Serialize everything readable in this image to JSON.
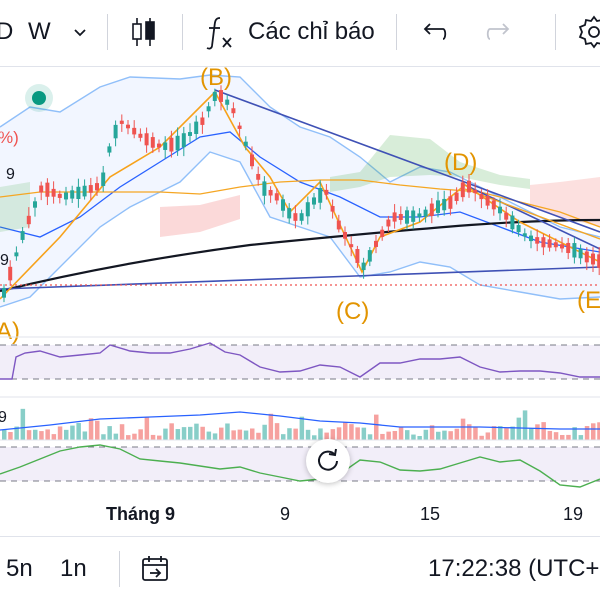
{
  "toolbar": {
    "partial_symbol": "D",
    "interval": "W",
    "indicators_label": "Các chỉ báo"
  },
  "chart": {
    "wave_labels": {
      "A": "(A)",
      "B": "(B)",
      "C": "(C)",
      "D": "(D)",
      "E": "(E"
    },
    "left_edge_labels": [
      "%)",
      "9",
      "9",
      "9"
    ],
    "xaxis": {
      "month": "Tháng 9",
      "d9": "9",
      "d15": "15",
      "d19": "19"
    },
    "colors": {
      "up": "#26a69a",
      "down": "#ef5350",
      "bollinger": "#2962ff",
      "wave": "#f7a21b",
      "rsi": "#7e57c2",
      "indicator_green": "#4caf50",
      "ma_long": "#131722",
      "label_orange": "#e29400",
      "status_dot": "#089981"
    }
  },
  "bottombar": {
    "range_5n": "5n",
    "range_1n": "1n",
    "time": "17:22:38 (UTC+"
  },
  "icons": [
    "chevron-down-icon",
    "candles-icon",
    "fx-icon",
    "undo-icon",
    "redo-icon",
    "gear-icon",
    "calendar-goto-icon",
    "reset-icon"
  ]
}
